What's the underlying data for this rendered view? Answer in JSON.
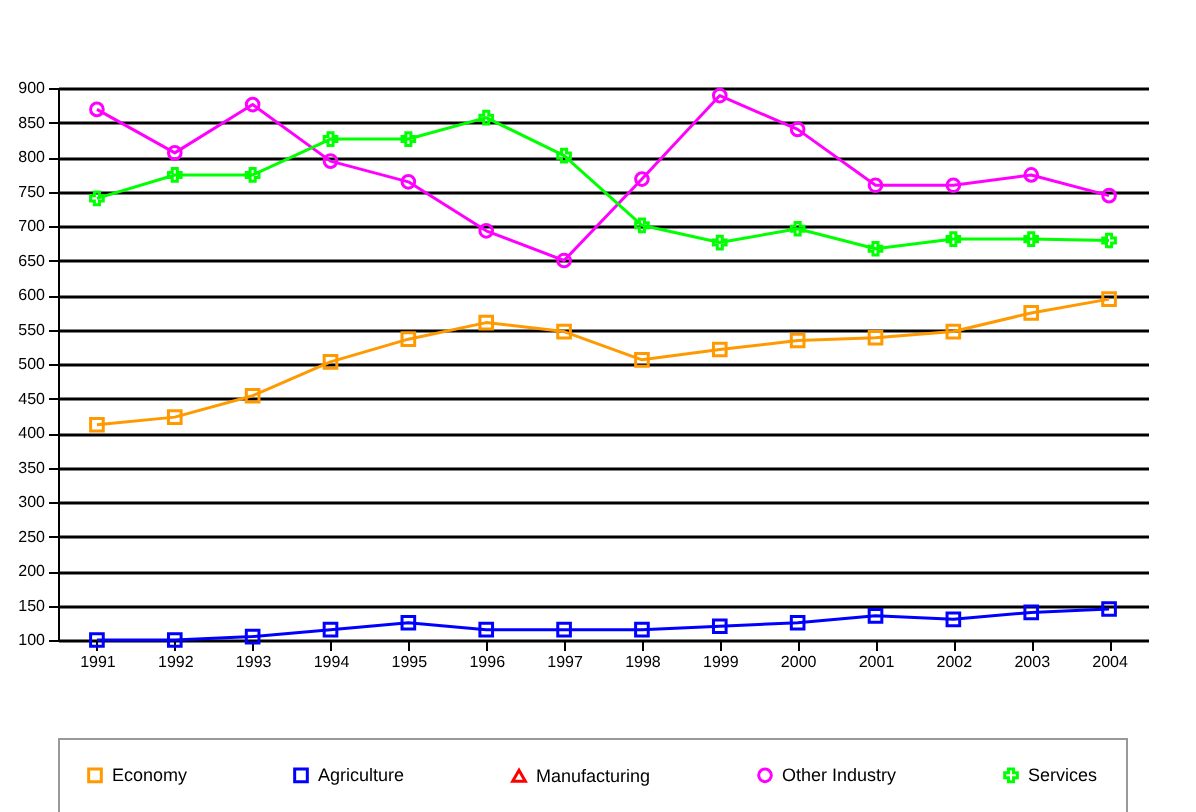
{
  "chart_data": {
    "type": "line",
    "categories": [
      "1991",
      "1992",
      "1993",
      "1994",
      "1995",
      "1996",
      "1997",
      "1998",
      "1999",
      "2000",
      "2001",
      "2002",
      "2003",
      "2004"
    ],
    "series": [
      {
        "name": "Economy",
        "color": "#ff9900",
        "marker": "square",
        "values": [
          412,
          423,
          454,
          503,
          536,
          560,
          547,
          506,
          521,
          534,
          538,
          547,
          574,
          594
        ]
      },
      {
        "name": "Agriculture",
        "color": "#0000ff",
        "marker": "square",
        "values": [
          100,
          100,
          105,
          115,
          125,
          115,
          115,
          115,
          120,
          125,
          135,
          130,
          140,
          145
        ]
      },
      {
        "name": "Manufacturing",
        "color": "#ff0000",
        "marker": "triangle",
        "values": [
          null,
          null,
          null,
          null,
          null,
          null,
          null,
          null,
          null,
          null,
          null,
          null,
          null,
          null
        ]
      },
      {
        "name": "Other Industry",
        "color": "#ff00ff",
        "marker": "circle",
        "values": [
          869,
          806,
          876,
          794,
          764,
          693,
          650,
          768,
          889,
          840,
          759,
          759,
          774,
          744
        ]
      },
      {
        "name": "Services",
        "color": "#00ff00",
        "marker": "cross",
        "values": [
          740,
          774,
          774,
          826,
          826,
          857,
          802,
          701,
          676,
          696,
          667,
          681,
          681,
          679
        ]
      }
    ],
    "ylim": [
      100,
      900
    ],
    "yticks": [
      100,
      150,
      200,
      250,
      300,
      350,
      400,
      450,
      500,
      550,
      600,
      650,
      700,
      750,
      800,
      850,
      900
    ],
    "grid": "y",
    "legend": "bottom"
  }
}
